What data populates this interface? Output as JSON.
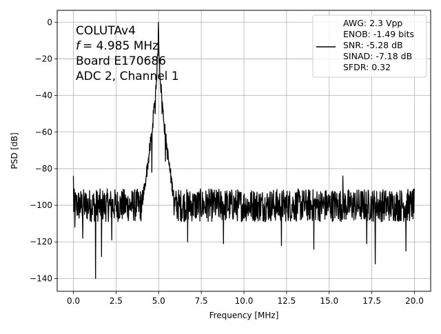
{
  "chart_data": {
    "type": "line",
    "xlabel": "Frequency [MHz]",
    "ylabel": "PSD [dB]",
    "xlim": [
      -0.95,
      20.95
    ],
    "ylim": [
      -147,
      6.5
    ],
    "x_ticks": [
      0.0,
      2.5,
      5.0,
      7.5,
      10.0,
      12.5,
      15.0,
      17.5,
      20.0
    ],
    "x_tick_labels": [
      "0.0",
      "2.5",
      "5.0",
      "7.5",
      "10.0",
      "12.5",
      "15.0",
      "17.5",
      "20.0"
    ],
    "y_ticks": [
      0,
      -20,
      -40,
      -60,
      -80,
      -100,
      -120,
      -140
    ],
    "y_tick_labels": [
      "0",
      "−20",
      "−40",
      "−60",
      "−80",
      "−100",
      "−120",
      "−140"
    ],
    "grid": true,
    "legend_placement": "top-right",
    "annotation_lines": [
      "COLUTAv4",
      "= 4.985 MHz",
      "Board E170686",
      "ADC 2, Channel 1"
    ],
    "annotation_f_symbol": "f",
    "legend_lines": [
      "AWG: 2.3 Vpp",
      "ENOB: -1.49 bits",
      "SNR: -5.28 dB",
      "SINAD: -7.18 dB",
      "SFDR: 0.32"
    ],
    "series": [
      {
        "color": "#000000",
        "noise_floor_db": -100,
        "noise_band_db": [
          -92,
          -110
        ],
        "peak": {
          "x": 4.985,
          "y": 0
        },
        "spikes": [
          {
            "x": 0.0,
            "y": -84
          },
          {
            "x": 0.08,
            "y": -112
          },
          {
            "x": 0.55,
            "y": -118
          },
          {
            "x": 1.3,
            "y": -140
          },
          {
            "x": 1.65,
            "y": -128
          },
          {
            "x": 2.25,
            "y": -119
          },
          {
            "x": 4.2,
            "y": -88
          },
          {
            "x": 4.6,
            "y": -82
          },
          {
            "x": 4.8,
            "y": -50
          },
          {
            "x": 5.2,
            "y": -50
          },
          {
            "x": 5.4,
            "y": -76
          },
          {
            "x": 6.7,
            "y": -120
          },
          {
            "x": 8.8,
            "y": -121
          },
          {
            "x": 12.2,
            "y": -122
          },
          {
            "x": 14.1,
            "y": -124
          },
          {
            "x": 15.8,
            "y": -84
          },
          {
            "x": 17.2,
            "y": -121
          },
          {
            "x": 17.7,
            "y": -132
          },
          {
            "x": 19.5,
            "y": -125
          }
        ]
      }
    ]
  }
}
